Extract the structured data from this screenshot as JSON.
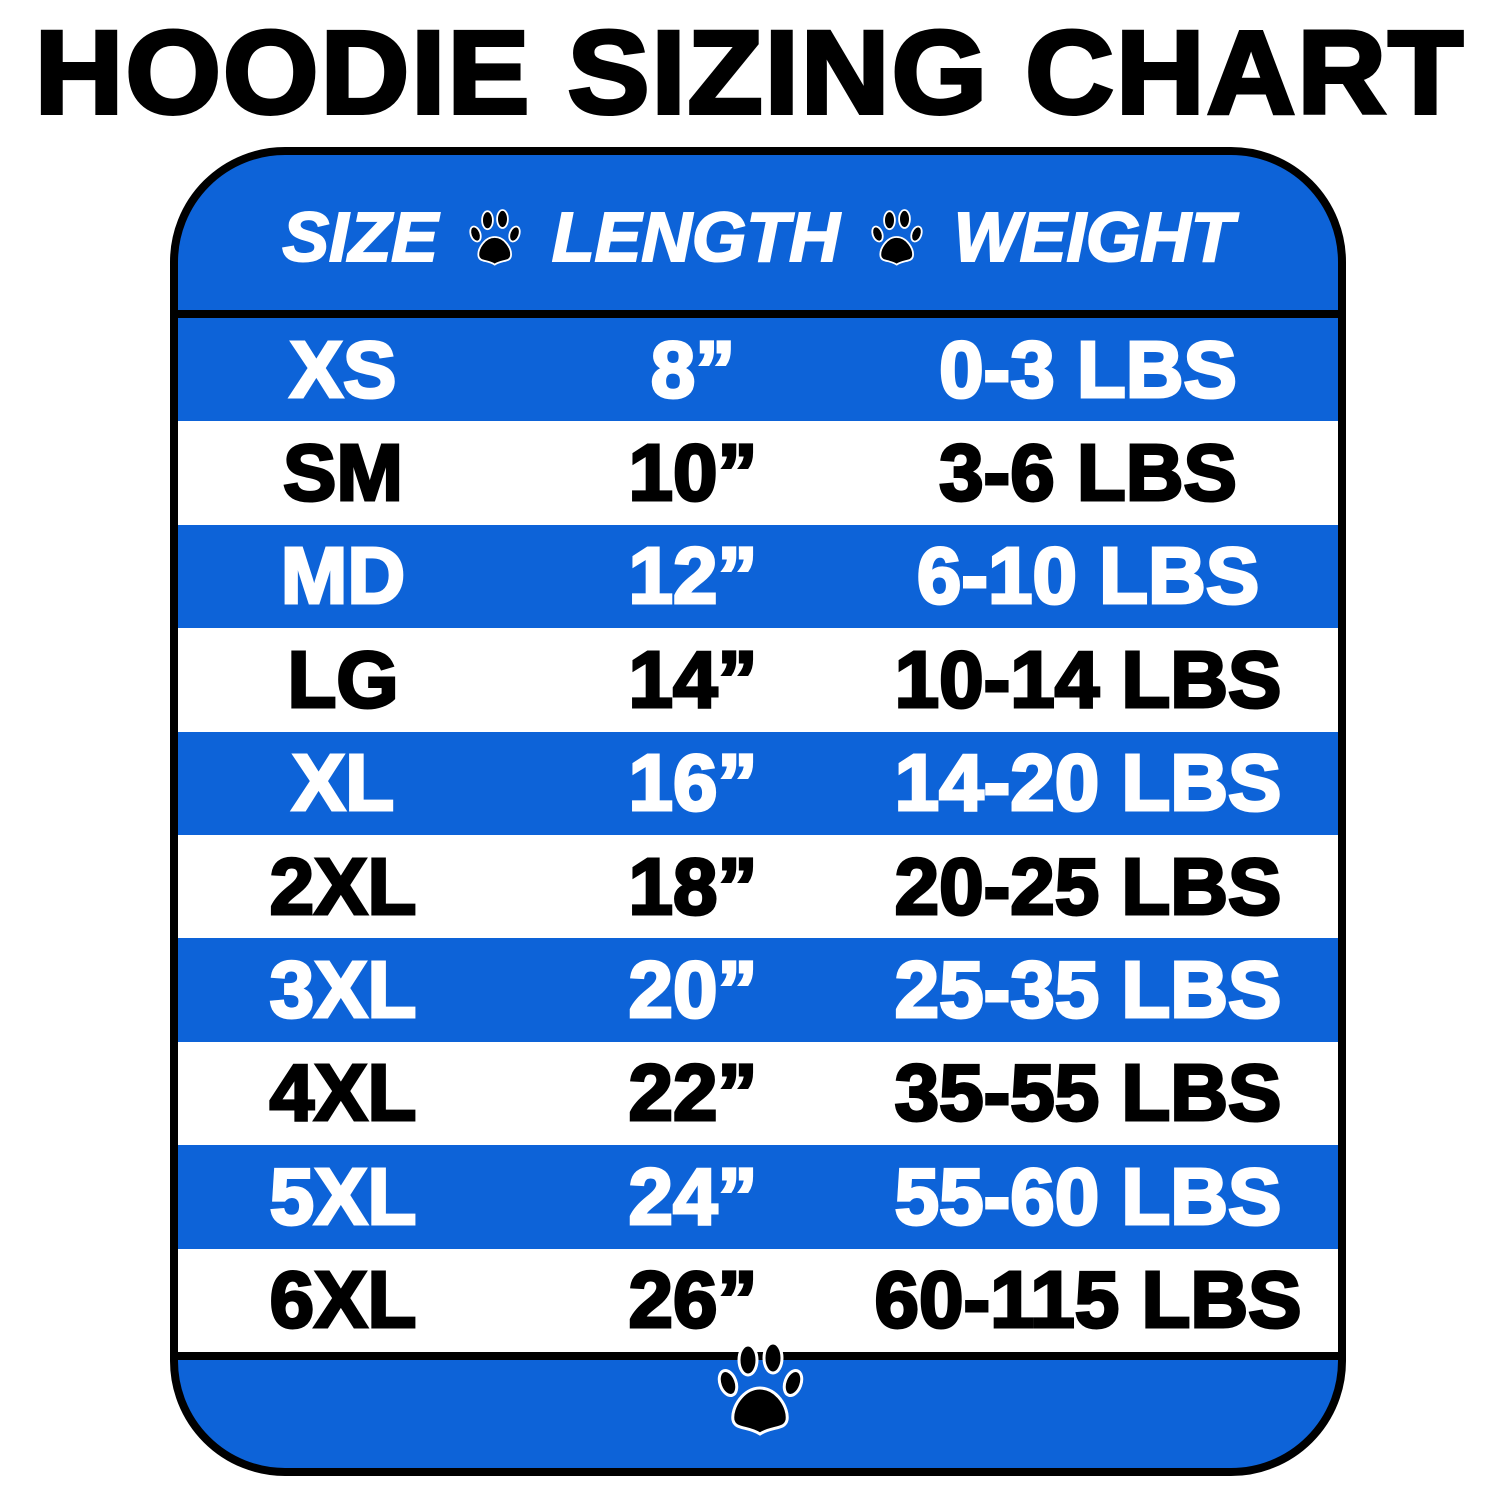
{
  "title": "HOODIE SIZING CHART",
  "header": {
    "size": "SIZE",
    "length": "LENGTH",
    "weight": "WEIGHT",
    "separator_icon": "paw-print-icon"
  },
  "colors": {
    "blue": "#0d63d8",
    "white": "#ffffff",
    "black": "#000000"
  },
  "rows": [
    {
      "size": "XS",
      "length": "8”",
      "weight": "0-3 LBS"
    },
    {
      "size": "SM",
      "length": "10”",
      "weight": "3-6 LBS"
    },
    {
      "size": "MD",
      "length": "12”",
      "weight": "6-10 LBS"
    },
    {
      "size": "LG",
      "length": "14”",
      "weight": "10-14 LBS"
    },
    {
      "size": "XL",
      "length": "16”",
      "weight": "14-20 LBS"
    },
    {
      "size": "2XL",
      "length": "18”",
      "weight": "20-25 LBS"
    },
    {
      "size": "3XL",
      "length": "20”",
      "weight": "25-35 LBS"
    },
    {
      "size": "4XL",
      "length": "22”",
      "weight": "35-55 LBS"
    },
    {
      "size": "5XL",
      "length": "24”",
      "weight": "55-60 LBS"
    },
    {
      "size": "6XL",
      "length": "26”",
      "weight": "60-115 LBS"
    }
  ],
  "footer": {
    "icon": "paw-print-icon"
  }
}
